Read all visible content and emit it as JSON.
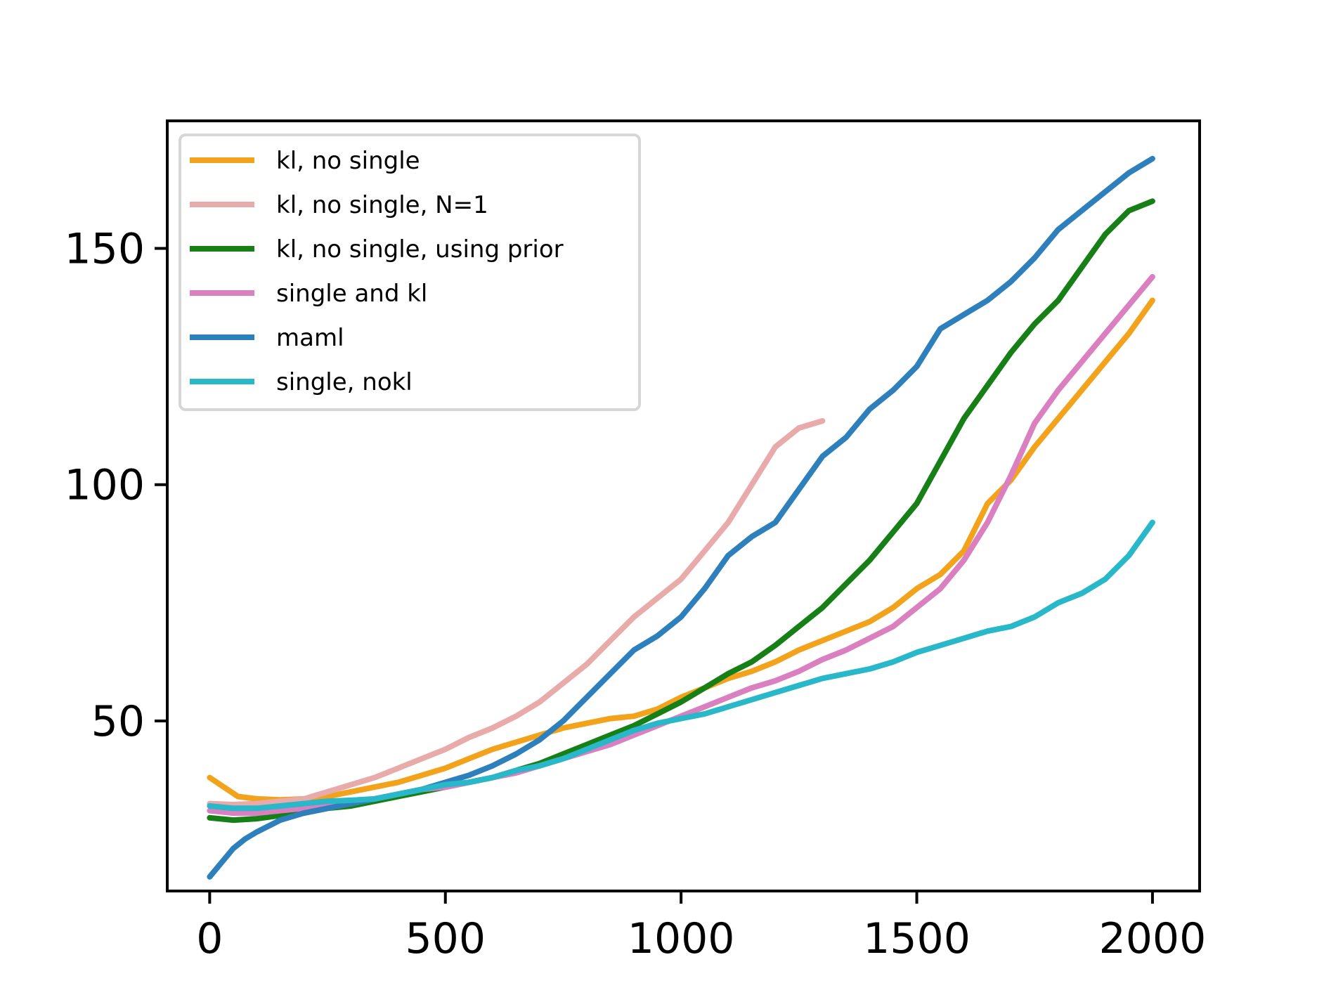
{
  "chart_data": {
    "type": "line",
    "title": "",
    "xlabel": "",
    "ylabel": "",
    "xlim": [
      -90,
      2100
    ],
    "ylim": [
      14,
      177
    ],
    "xticks": [
      0,
      500,
      1000,
      1500,
      2000
    ],
    "yticks": [
      50,
      100,
      150
    ],
    "grid": false,
    "legend_position": "top-left",
    "series": [
      {
        "name": "kl, no single",
        "color": "#f2a31b",
        "x": [
          0,
          30,
          60,
          100,
          150,
          200,
          250,
          300,
          350,
          400,
          450,
          500,
          550,
          600,
          650,
          700,
          750,
          800,
          850,
          900,
          950,
          1000,
          1050,
          1100,
          1150,
          1200,
          1250,
          1300,
          1350,
          1400,
          1450,
          1500,
          1550,
          1600,
          1650,
          1700,
          1750,
          1800,
          1850,
          1900,
          1950,
          2000
        ],
        "y": [
          38,
          36,
          34,
          33.5,
          33.3,
          33.5,
          34,
          35,
          36,
          37,
          38.5,
          40,
          42,
          44,
          45.5,
          47,
          48.5,
          49.5,
          50.5,
          51,
          52.5,
          55,
          57,
          59,
          60.5,
          62.5,
          65,
          67,
          69,
          71,
          74,
          78,
          81,
          86,
          96,
          101,
          108,
          114,
          120,
          126,
          132,
          139
        ]
      },
      {
        "name": "kl, no single, N=1",
        "color": "#e8abaa",
        "x": [
          0,
          50,
          100,
          150,
          200,
          250,
          300,
          350,
          400,
          450,
          500,
          550,
          600,
          650,
          700,
          750,
          800,
          850,
          900,
          950,
          1000,
          1050,
          1100,
          1150,
          1200,
          1250,
          1300
        ],
        "y": [
          32.5,
          32.3,
          32.5,
          33,
          33.5,
          35,
          36.5,
          38,
          40,
          42,
          44,
          46.5,
          48.5,
          51,
          54,
          58,
          62,
          67,
          72,
          76,
          80,
          86,
          92,
          100,
          108,
          112,
          113.5
        ]
      },
      {
        "name": "kl, no single, using prior",
        "color": "#167f16",
        "x": [
          0,
          50,
          100,
          150,
          200,
          250,
          300,
          350,
          400,
          450,
          500,
          550,
          600,
          650,
          700,
          750,
          800,
          850,
          900,
          950,
          1000,
          1050,
          1100,
          1150,
          1200,
          1250,
          1300,
          1350,
          1400,
          1450,
          1500,
          1550,
          1600,
          1650,
          1700,
          1750,
          1800,
          1850,
          1900,
          1950,
          2000
        ],
        "y": [
          29.5,
          29,
          29.3,
          30,
          30.5,
          31.5,
          32,
          33,
          34,
          35,
          36,
          37,
          38,
          39.5,
          41,
          43,
          45,
          47,
          49,
          51.5,
          54,
          57,
          60,
          62.5,
          66,
          70,
          74,
          79,
          84,
          90,
          96,
          105,
          114,
          121,
          128,
          134,
          139,
          146,
          153,
          158,
          160
        ]
      },
      {
        "name": "single and kl",
        "color": "#da7fbf",
        "x": [
          0,
          50,
          100,
          150,
          200,
          250,
          300,
          350,
          400,
          450,
          500,
          550,
          600,
          650,
          700,
          750,
          800,
          850,
          900,
          950,
          1000,
          1050,
          1100,
          1150,
          1200,
          1250,
          1300,
          1350,
          1400,
          1450,
          1500,
          1550,
          1600,
          1650,
          1700,
          1750,
          1800,
          1850,
          1900,
          1950,
          2000
        ],
        "y": [
          31,
          30.5,
          30.5,
          31,
          31.5,
          32,
          32.5,
          33.5,
          34.5,
          35.5,
          36,
          37,
          38,
          39,
          40.5,
          42,
          43.5,
          45,
          47,
          49,
          51,
          53,
          55,
          57,
          58.5,
          60.5,
          63,
          65,
          67.5,
          70,
          74,
          78,
          84,
          92,
          102,
          113,
          120,
          126,
          132,
          138,
          144
        ]
      },
      {
        "name": "maml",
        "color": "#2e80bd",
        "x": [
          0,
          25,
          50,
          75,
          100,
          150,
          200,
          250,
          300,
          350,
          400,
          450,
          500,
          550,
          600,
          650,
          700,
          750,
          800,
          850,
          900,
          950,
          1000,
          1050,
          1100,
          1150,
          1200,
          1250,
          1300,
          1350,
          1400,
          1450,
          1500,
          1550,
          1600,
          1650,
          1700,
          1750,
          1800,
          1850,
          1900,
          1950,
          2000
        ],
        "y": [
          17,
          20,
          23,
          25,
          26.5,
          29,
          30.5,
          31.5,
          32.5,
          33.5,
          34.5,
          35.5,
          37,
          38.5,
          40.5,
          43,
          46,
          50,
          55,
          60,
          65,
          68,
          72,
          78,
          85,
          89,
          92,
          99,
          106,
          110,
          116,
          120,
          125,
          133,
          136,
          139,
          143,
          148,
          154,
          158,
          162,
          166,
          169
        ]
      },
      {
        "name": "single, nokl",
        "color": "#28b8c9",
        "x": [
          0,
          50,
          100,
          150,
          200,
          250,
          300,
          350,
          400,
          450,
          500,
          550,
          600,
          650,
          700,
          750,
          800,
          850,
          900,
          950,
          1000,
          1050,
          1100,
          1150,
          1200,
          1250,
          1300,
          1350,
          1400,
          1450,
          1500,
          1550,
          1600,
          1650,
          1700,
          1750,
          1800,
          1850,
          1900,
          1950,
          2000
        ],
        "y": [
          32,
          31.5,
          31.5,
          32,
          32.5,
          33,
          33.2,
          33.5,
          34.5,
          35.5,
          36.5,
          37,
          38,
          39.5,
          40.5,
          42,
          44,
          46,
          48,
          49.5,
          50.5,
          51.5,
          53,
          54.5,
          56,
          57.5,
          59,
          60,
          61,
          62.5,
          64.5,
          66,
          67.5,
          69,
          70,
          72,
          75,
          77,
          80,
          85,
          92
        ]
      }
    ]
  }
}
